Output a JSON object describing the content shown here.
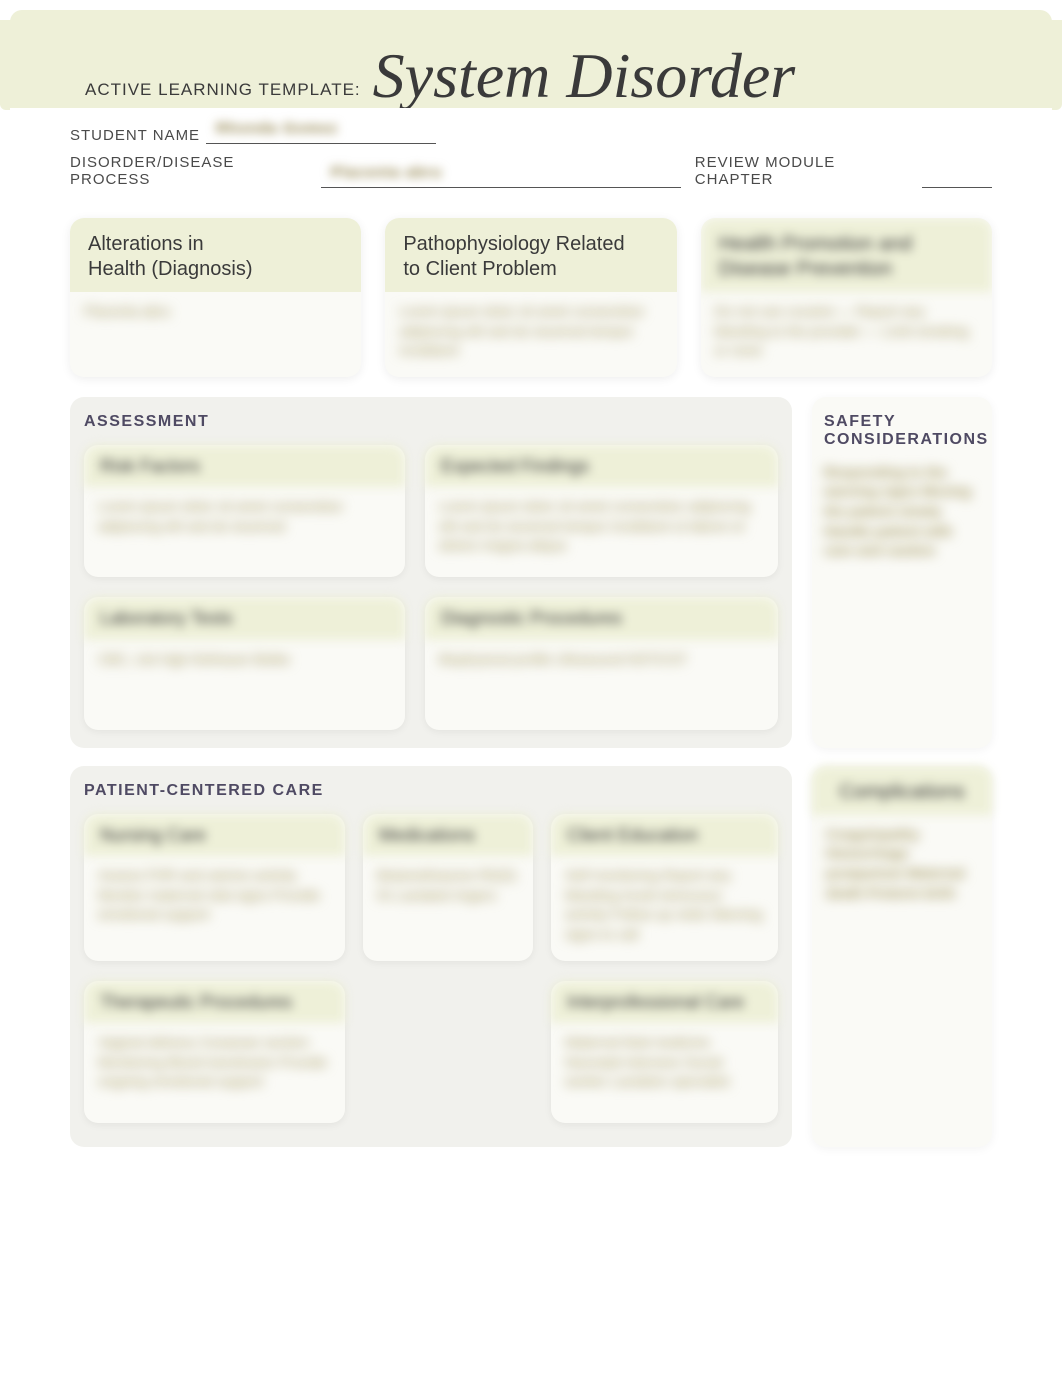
{
  "header": {
    "template_prefix": "ACTIVE LEARNING TEMPLATE:",
    "title": "System Disorder"
  },
  "meta": {
    "student_label": "STUDENT NAME",
    "student_value": "Rhonda Gomez",
    "disorder_label": "DISORDER/DISEASE PROCESS",
    "disorder_value": "Placenta abru",
    "review_label": "REVIEW MODULE CHAPTER"
  },
  "top_cards": {
    "alterations": {
      "title": "Alterations in\nHealth (Diagnosis)",
      "body": "Placenta abru"
    },
    "pathophys": {
      "title": "Pathophysiology Related\nto Client Problem",
      "body": "Lorem ipsum dolor sit amet consectetur adipiscing elit sed do eiusmod tempor incididunt"
    },
    "health": {
      "title": "Health Promotion and Disease Prevention",
      "body": "Do not use cocaine — Report any bleeding to the provider — Limit smoking or none"
    }
  },
  "assessment": {
    "label": "ASSESSMENT",
    "risk": {
      "title": "Risk Factors",
      "body": "Lorem ipsum dolor sit amet consectetur adipiscing elit sed do eiusmod"
    },
    "expected": {
      "title": "Expected Findings",
      "body": "Lorem ipsum dolor sit amet consectetur adipiscing elit sed do eiusmod tempor incididunt ut labore et dolore magna aliqua"
    },
    "labs": {
      "title": "Laboratory Tests",
      "body": "CBC, clot Hgb Kleihauer-Betke"
    },
    "diag": {
      "title": "Diagnostic Procedures",
      "body": "Biophysical profile Ultrasound NST/CST"
    }
  },
  "safety": {
    "label": "SAFETY\nCONSIDERATIONS",
    "body": "Responding to the warning signs Moving the patient slowly Handle patient with care and caution"
  },
  "pcc": {
    "label": "PATIENT-CENTERED CARE",
    "nursing": {
      "title": "Nursing Care",
      "body": "Assess FHR and uterine activity Monitor maternal vital signs Provide emotional support"
    },
    "meds": {
      "title": "Medications",
      "body": "Betamethasone Rh(D) IG Lactated ringers"
    },
    "edu": {
      "title": "Client Education",
      "body": "Self monitoring Report any bleeding Avoid strenuous activity Follow up visits Warning signs to call"
    },
    "therap": {
      "title": "Therapeutic Procedures",
      "body": "Vaginal delivery Cesarean section Monitoring Blood transfusion Provide ongoing emotional support"
    },
    "inter": {
      "title": "Interprofessional Care",
      "body": "Maternal fetal medicine Neonatal intensive Social worker Lactation specialist"
    }
  },
  "complications": {
    "title": "Complications",
    "body": "Coagulopathy Hemorrhage postpartum Maternal death Preterm birth"
  },
  "colors": {
    "band_bg": "#eef0d8",
    "page_bg": "#ffffff",
    "panel_bg": "#f1f1ed",
    "card_bg": "#fafaf6",
    "text": "#3a3a3a",
    "label": "#4f4a63"
  }
}
